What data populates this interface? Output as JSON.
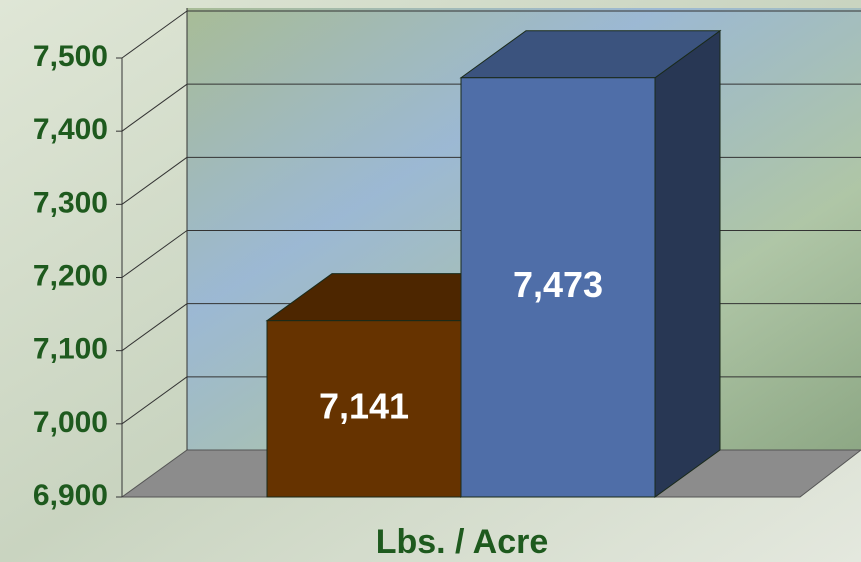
{
  "chart_data": {
    "type": "bar3d",
    "categories": [
      "Lbs. / Acre"
    ],
    "series": [
      {
        "color": "#663300",
        "values": [
          7141
        ],
        "value_labels": [
          "7,141"
        ]
      },
      {
        "color": "#4f6ea8",
        "values": [
          7473
        ],
        "value_labels": [
          "7,473"
        ]
      }
    ],
    "ylim": [
      6900,
      7500
    ],
    "yticks": [
      {
        "value": 6900,
        "label": "6,900"
      },
      {
        "value": 7000,
        "label": "7,000"
      },
      {
        "value": 7100,
        "label": "7,100"
      },
      {
        "value": 7200,
        "label": "7,200"
      },
      {
        "value": 7300,
        "label": "7,300"
      },
      {
        "value": 7400,
        "label": "7,400"
      },
      {
        "value": 7500,
        "label": "7,500"
      }
    ],
    "grid": true
  }
}
